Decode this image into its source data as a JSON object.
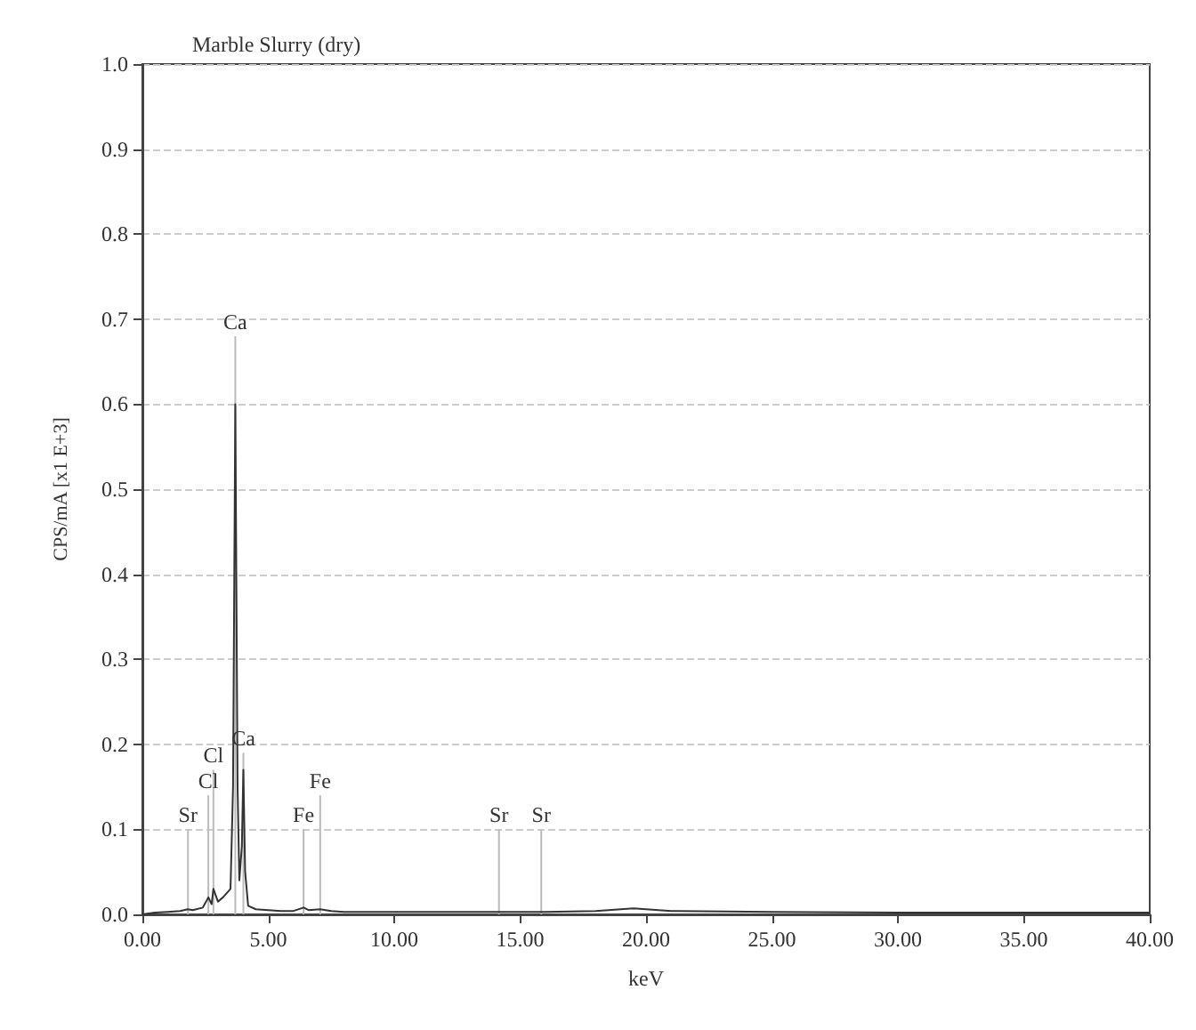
{
  "chart_data": {
    "type": "line",
    "title": "Marble Slurry (dry)",
    "xlabel": "keV",
    "ylabel": "CPS/mA [x1 E+3]",
    "xlim": [
      0,
      40
    ],
    "ylim": [
      0,
      1
    ],
    "xticks": [
      {
        "value": 0,
        "label": "0.00"
      },
      {
        "value": 5,
        "label": "5.00"
      },
      {
        "value": 10,
        "label": "10.00"
      },
      {
        "value": 15,
        "label": "15.00"
      },
      {
        "value": 20,
        "label": "20.00"
      },
      {
        "value": 25,
        "label": "25.00"
      },
      {
        "value": 30,
        "label": "30.00"
      },
      {
        "value": 35,
        "label": "35.00"
      },
      {
        "value": 40,
        "label": "40.00"
      }
    ],
    "yticks": [
      {
        "value": 0,
        "label": "0.0"
      },
      {
        "value": 0.1,
        "label": "0.1"
      },
      {
        "value": 0.2,
        "label": "0.2"
      },
      {
        "value": 0.3,
        "label": "0.3"
      },
      {
        "value": 0.4,
        "label": "0.4"
      },
      {
        "value": 0.5,
        "label": "0.5"
      },
      {
        "value": 0.6,
        "label": "0.6"
      },
      {
        "value": 0.7,
        "label": "0.7"
      },
      {
        "value": 0.8,
        "label": "0.8"
      },
      {
        "value": 0.9,
        "label": "0.9"
      },
      {
        "value": 1,
        "label": "1.0"
      }
    ],
    "grid": "y",
    "marker": "none",
    "line_style": "solid",
    "series": [
      {
        "color": "#333333",
        "x": [
          0,
          0.5,
          1,
          1.5,
          1.8,
          2,
          2.4,
          2.62,
          2.75,
          2.82,
          3,
          3.2,
          3.5,
          3.6,
          3.69,
          3.78,
          3.85,
          3.95,
          4.01,
          4.08,
          4.2,
          4.5,
          5,
          5.5,
          6,
          6.4,
          6.6,
          7.06,
          7.5,
          8,
          10,
          12,
          14,
          16,
          18,
          19,
          19.5,
          20,
          21,
          25,
          30,
          35,
          40
        ],
        "values": [
          0,
          0.002,
          0.003,
          0.004,
          0.006,
          0.005,
          0.008,
          0.02,
          0.012,
          0.03,
          0.015,
          0.02,
          0.03,
          0.15,
          0.6,
          0.15,
          0.04,
          0.08,
          0.17,
          0.05,
          0.01,
          0.006,
          0.005,
          0.004,
          0.004,
          0.008,
          0.005,
          0.006,
          0.004,
          0.003,
          0.003,
          0.003,
          0.003,
          0.003,
          0.004,
          0.006,
          0.007,
          0.006,
          0.004,
          0.003,
          0.002,
          0.002,
          0.002
        ]
      },
      {
        "type": "bar",
        "color": "#bbbbbb",
        "x": [
          1.81,
          2.62,
          2.82,
          3.69,
          4.01,
          6.4,
          7.06,
          14.16,
          15.84
        ],
        "values": [
          0.1,
          0.14,
          0.17,
          0.68,
          0.19,
          0.1,
          0.14,
          0.1,
          0.1
        ],
        "value_labels": [
          "Sr",
          "Cl",
          "Cl",
          "Ca",
          "Ca",
          "Fe",
          "Fe",
          "Sr",
          "Sr"
        ]
      }
    ]
  }
}
